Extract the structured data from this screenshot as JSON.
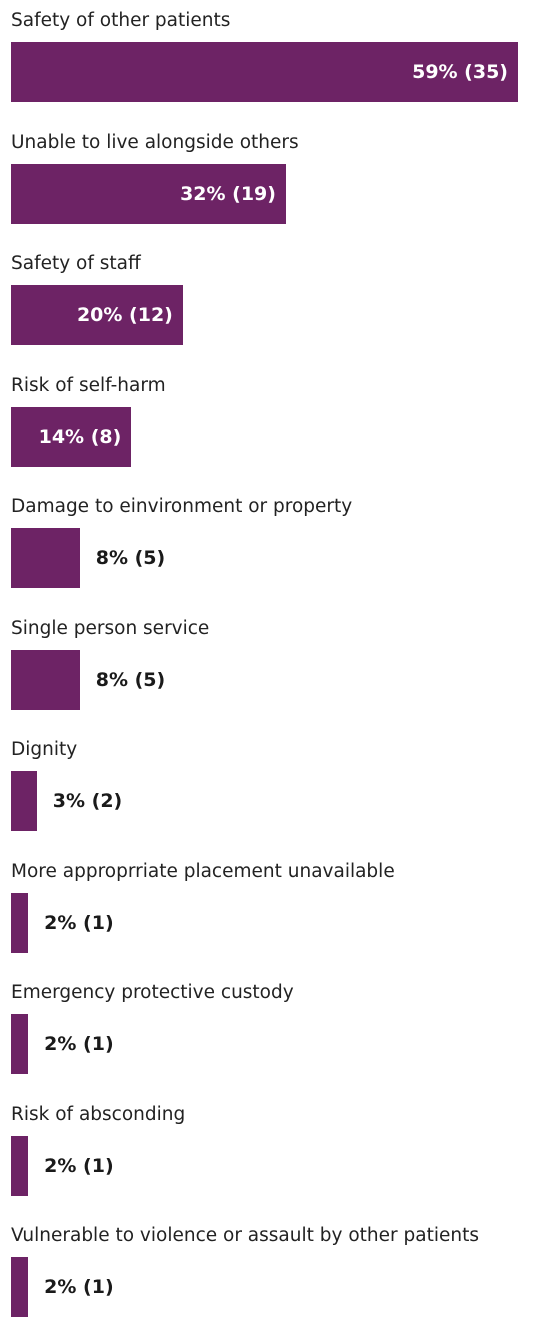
{
  "chart_data": {
    "type": "bar",
    "orientation": "horizontal",
    "bar_color": "#6d2365",
    "inside_label_color": "#ffffff",
    "outside_label_color": "#1a1a1a",
    "xlim": [
      0,
      59
    ],
    "categories": [
      "Safety of other patients",
      "Unable to live alongside others",
      "Safety of staff",
      "Risk of self-harm",
      "Damage to einvironment or property",
      "Single person service",
      "Dignity",
      "More approprriate placement unavailable",
      "Emergency protective custody",
      "Risk of absconding",
      "Vulnerable to violence or assault by other patients"
    ],
    "values": [
      59,
      32,
      20,
      14,
      8,
      8,
      3,
      2,
      2,
      2,
      2
    ],
    "counts": [
      35,
      19,
      12,
      8,
      5,
      5,
      2,
      1,
      1,
      1,
      1
    ],
    "value_labels": [
      "59% (35)",
      "32% (19)",
      "20% (12)",
      "14% (8)",
      "8% (5)",
      "8% (5)",
      "3% (2)",
      "2% (1)",
      "2% (1)",
      "2% (1)",
      "2% (1)"
    ]
  }
}
